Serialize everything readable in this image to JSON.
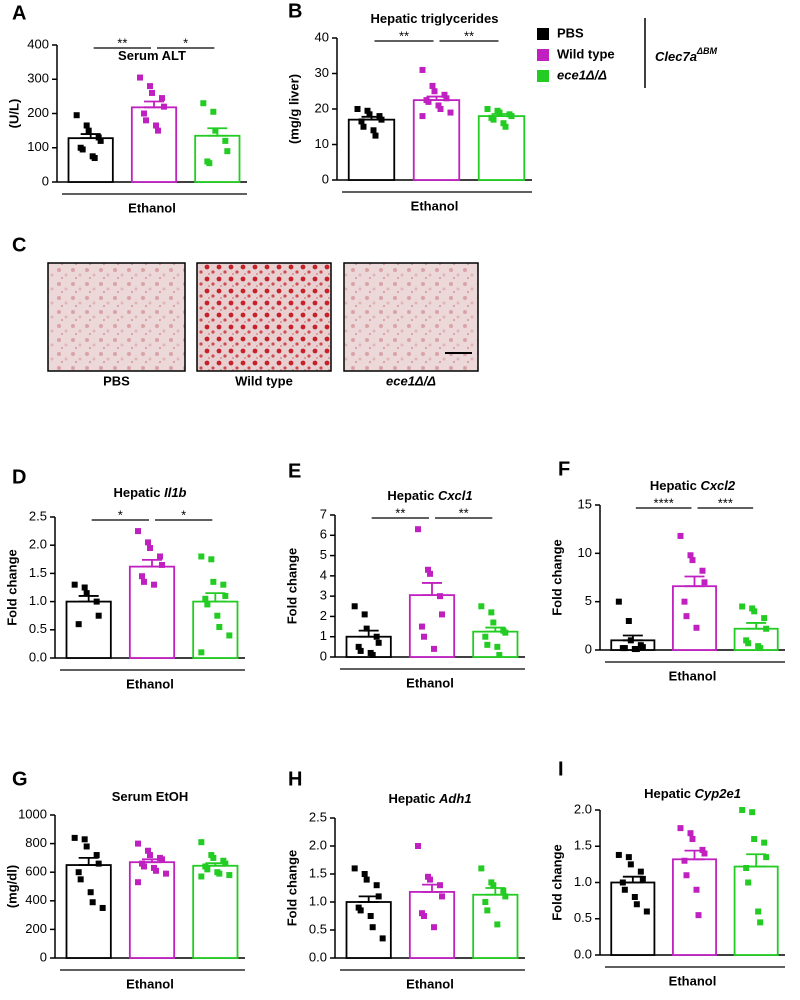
{
  "chart_data": [
    {
      "type": "bar",
      "panel": "A",
      "title": "Serum ALT",
      "ylabel": "(U/L)",
      "xlabel": "Ethanol",
      "values": [
        128,
        218,
        135
      ],
      "errors": [
        12,
        17,
        22
      ],
      "points": [
        [
          195,
          165,
          150,
          130,
          120,
          100,
          95,
          75,
          70
        ],
        [
          305,
          280,
          260,
          245,
          220,
          200,
          180,
          165,
          150
        ],
        [
          230,
          205,
          150,
          120,
          90,
          60,
          55
        ]
      ],
      "ylim": [
        0,
        400
      ],
      "yticks": [
        0,
        100,
        200,
        300,
        400
      ],
      "significance": [
        "**",
        "*"
      ]
    },
    {
      "type": "bar",
      "panel": "B",
      "title": "Hepatic triglycerides",
      "ylabel": "(mg/g liver)",
      "xlabel": "Ethanol",
      "values": [
        17,
        22.5,
        18
      ],
      "errors": [
        0.8,
        1,
        0.6
      ],
      "points": [
        [
          20,
          19.5,
          18.5,
          18,
          17,
          16.5,
          15,
          14,
          12.5
        ],
        [
          31,
          26.5,
          25,
          24,
          23,
          22.5,
          22,
          21,
          20,
          19,
          18
        ],
        [
          20,
          19.5,
          19,
          18.5,
          18,
          17.5,
          17,
          16,
          15
        ]
      ],
      "ylim": [
        0,
        40
      ],
      "yticks": [
        0,
        10,
        20,
        30,
        40
      ],
      "significance": [
        "**",
        "**"
      ]
    },
    {
      "type": "bar",
      "panel": "D",
      "title": "Hepatic",
      "title_gene": "Il1b",
      "ylabel": "Fold change",
      "xlabel": "Ethanol",
      "values": [
        1.0,
        1.62,
        1.0
      ],
      "errors": [
        0.1,
        0.12,
        0.15
      ],
      "points": [
        [
          1.3,
          1.25,
          1.15,
          1.0,
          0.75,
          0.6
        ],
        [
          2.25,
          2.05,
          1.95,
          1.8,
          1.65,
          1.45,
          1.35,
          1.3
        ],
        [
          1.8,
          1.75,
          1.35,
          1.3,
          1.1,
          1.05,
          0.95,
          0.75,
          0.55,
          0.4,
          0.1
        ]
      ],
      "ylim": [
        0,
        2.5
      ],
      "yticks": [
        {
          "value": 0,
          "label": "0.0"
        },
        {
          "value": 0.5,
          "label": "0.5"
        },
        {
          "value": 1,
          "label": "1.0"
        },
        {
          "value": 1.5,
          "label": "1.5"
        },
        {
          "value": 2,
          "label": "2.0"
        },
        {
          "value": 2.5,
          "label": "2.5"
        }
      ],
      "significance": [
        "*",
        "*"
      ]
    },
    {
      "type": "bar",
      "panel": "E",
      "title": "Hepatic",
      "title_gene": "Cxcl1",
      "ylabel": "Fold change",
      "xlabel": "Ethanol",
      "values": [
        1.0,
        3.05,
        1.25
      ],
      "errors": [
        0.3,
        0.6,
        0.2
      ],
      "points": [
        [
          2.5,
          2.1,
          1.4,
          1.0,
          0.7,
          0.5,
          0.3,
          0.2,
          0.1
        ],
        [
          6.3,
          4.3,
          4.1,
          3.0,
          2.1,
          1.5,
          1.0,
          0.4
        ],
        [
          2.5,
          2.2,
          1.7,
          1.3,
          1.2,
          1.0,
          0.6,
          0.5,
          0.1
        ]
      ],
      "ylim": [
        0,
        7
      ],
      "yticks": [
        0,
        1,
        2,
        3,
        4,
        5,
        6,
        7
      ],
      "significance": [
        "**",
        "**"
      ]
    },
    {
      "type": "bar",
      "panel": "F",
      "title": "Hepatic",
      "title_gene": "Cxcl2",
      "ylabel": "Fold change",
      "xlabel": "Ethanol",
      "values": [
        1.0,
        6.6,
        2.2
      ],
      "errors": [
        0.5,
        1.0,
        0.6
      ],
      "points": [
        [
          5,
          3,
          1,
          0.5,
          0.3,
          0.2,
          0.2,
          0.1,
          0.1
        ],
        [
          11.8,
          9.8,
          9.3,
          8.2,
          7.0,
          5.0,
          3.5,
          2.3
        ],
        [
          4.5,
          4.3,
          4.0,
          3.3,
          2.2,
          1.0,
          0.7,
          0.4,
          0.2
        ]
      ],
      "ylim": [
        0,
        15
      ],
      "yticks": [
        0,
        5,
        10,
        15
      ],
      "significance": [
        "****",
        "***"
      ]
    },
    {
      "type": "bar",
      "panel": "G",
      "title": "Serum EtOH",
      "ylabel": "(mg/dl)",
      "xlabel": "Ethanol",
      "values": [
        650,
        670,
        645
      ],
      "errors": [
        50,
        20,
        18
      ],
      "points": [
        [
          840,
          830,
          780,
          720,
          660,
          600,
          550,
          460,
          390,
          350
        ],
        [
          800,
          750,
          720,
          700,
          690,
          660,
          640,
          630,
          610,
          590,
          530
        ],
        [
          810,
          720,
          700,
          680,
          660,
          640,
          620,
          600,
          590,
          580,
          570
        ]
      ],
      "ylim": [
        0,
        1000
      ],
      "yticks": [
        0,
        200,
        400,
        600,
        800,
        1000
      ],
      "significance": []
    },
    {
      "type": "bar",
      "panel": "H",
      "title": "Hepatic",
      "title_gene": "Adh1",
      "ylabel": "Fold change",
      "xlabel": "Ethanol",
      "values": [
        1.0,
        1.18,
        1.13
      ],
      "errors": [
        0.1,
        0.13,
        0.12
      ],
      "points": [
        [
          1.6,
          1.5,
          1.4,
          1.3,
          1.1,
          0.9,
          0.85,
          0.75,
          0.55,
          0.35
        ],
        [
          2.0,
          1.45,
          1.4,
          1.3,
          1.1,
          0.8,
          0.75,
          0.55
        ],
        [
          1.6,
          1.35,
          1.3,
          1.2,
          1.1,
          1.0,
          0.85,
          0.6
        ]
      ],
      "ylim": [
        0,
        2.5
      ],
      "yticks": [
        {
          "value": 0,
          "label": "0.0"
        },
        {
          "value": 0.5,
          "label": "0.5"
        },
        {
          "value": 1,
          "label": "1.0"
        },
        {
          "value": 1.5,
          "label": "1.5"
        },
        {
          "value": 2,
          "label": "2.0"
        },
        {
          "value": 2.5,
          "label": "2.5"
        }
      ],
      "significance": []
    },
    {
      "type": "bar",
      "panel": "I",
      "title": "Hepatic",
      "title_gene": "Cyp2e1",
      "ylabel": "Fold change",
      "xlabel": "Ethanol",
      "values": [
        1.0,
        1.32,
        1.22
      ],
      "errors": [
        0.08,
        0.12,
        0.17
      ],
      "points": [
        [
          1.38,
          1.35,
          1.25,
          1.15,
          1.05,
          1.0,
          0.9,
          0.8,
          0.7,
          0.6
        ],
        [
          1.75,
          1.68,
          1.6,
          1.45,
          1.4,
          1.3,
          1.1,
          0.9,
          0.55
        ],
        [
          2.0,
          1.97,
          1.6,
          1.55,
          1.35,
          1.2,
          1.0,
          0.6,
          0.45
        ]
      ],
      "ylim": [
        0,
        2.0
      ],
      "yticks": [
        {
          "value": 0,
          "label": "0.0"
        },
        {
          "value": 0.5,
          "label": "0.5"
        },
        {
          "value": 1,
          "label": "1.0"
        },
        {
          "value": 1.5,
          "label": "1.5"
        },
        {
          "value": 2,
          "label": "2.0"
        }
      ],
      "significance": []
    }
  ],
  "legend": {
    "entries": [
      {
        "name": "PBS",
        "color": "#000000"
      },
      {
        "name": "Wild type",
        "color": "#c020c0"
      },
      {
        "name": "ece1Δ/Δ",
        "color": "#22cc22"
      }
    ],
    "group_label": "Clec7a",
    "group_label_sup": "ΔBM"
  },
  "images": {
    "panel": "C",
    "labels": [
      "PBS",
      "Wild type",
      "ece1Δ/Δ"
    ]
  }
}
